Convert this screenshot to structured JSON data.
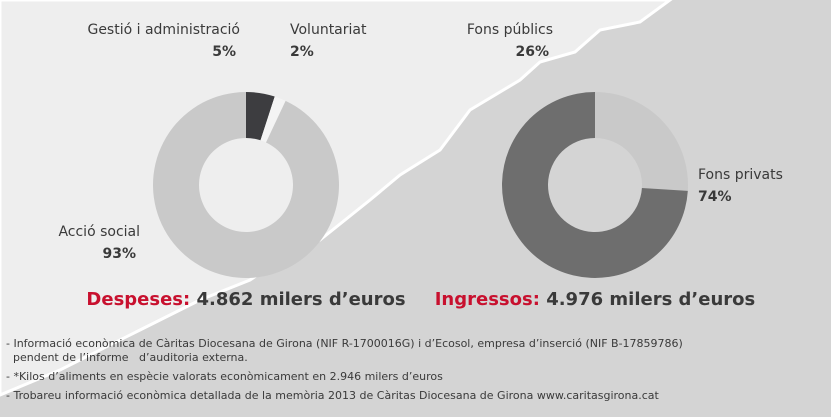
{
  "chart_data": [
    {
      "type": "pie",
      "donut": true,
      "categories": [
        "Gestió i administració",
        "Voluntariat",
        "Acció social"
      ],
      "values": [
        5,
        2,
        93
      ],
      "value_labels": [
        "5%",
        "2%",
        "93%"
      ],
      "colors": [
        "#3d3d40",
        "#f4f4f4",
        "#c9c9c9"
      ],
      "title_label": "Despeses:",
      "title_value": "4.862 milers d’euros"
    },
    {
      "type": "pie",
      "donut": true,
      "categories": [
        "Fons públics",
        "Fons privats"
      ],
      "values": [
        26,
        74
      ],
      "value_labels": [
        "26%",
        "74%"
      ],
      "colors": [
        "#c9c9c9",
        "#6e6e6e"
      ],
      "title_label": "Ingressos:",
      "title_value": "4.976 milers d’euros"
    }
  ],
  "notes": [
    "- Informació econòmica de Càritas Diocesana de Girona (NIF R-1700016G) i d’Ecosol, empresa d’inserció (NIF B-17859786)",
    "  pendent de l’informe   d’auditoria externa.",
    "- *Kilos d’aliments en espècie valorats econòmicament en 2.946 milers d’euros",
    "- Trobareu informació econòmica detallada de la memòria 2013 de Càritas Diocesana de Girona www.caritasgirona.cat"
  ]
}
